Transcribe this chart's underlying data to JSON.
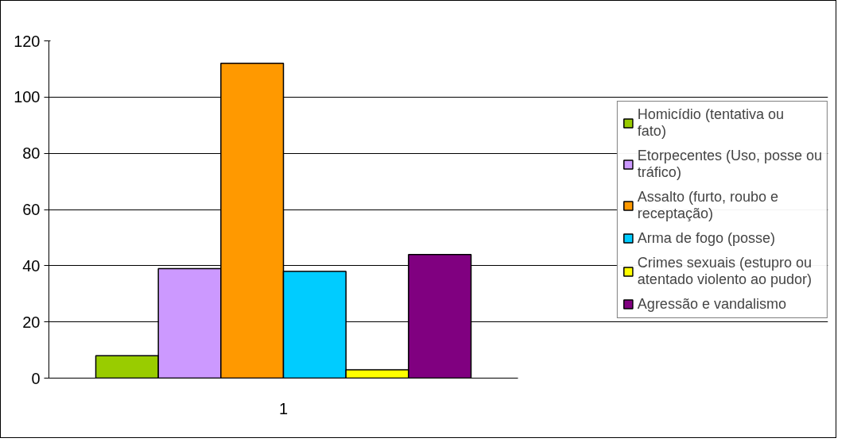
{
  "chart_data": {
    "type": "bar",
    "categories": [
      "1"
    ],
    "series": [
      {
        "name": "Homicídio (tentativa ou fato)",
        "color": "#99cc00",
        "values": [
          8
        ]
      },
      {
        "name": "Etorpecentes (Uso, posse ou tráfico)",
        "color": "#cc99ff",
        "values": [
          39
        ]
      },
      {
        "name": "Assalto (furto, roubo e receptação)",
        "color": "#ff9900",
        "values": [
          112
        ]
      },
      {
        "name": "Arma de fogo (posse)",
        "color": "#00ccff",
        "values": [
          38
        ]
      },
      {
        "name": "Crimes sexuais (estupro ou atentado violento ao pudor)",
        "color": "#ffff00",
        "values": [
          3
        ]
      },
      {
        "name": "Agressão e vandalismo",
        "color": "#800080",
        "values": [
          44
        ]
      }
    ],
    "ylim": [
      0,
      120
    ],
    "yticks": [
      0,
      20,
      40,
      60,
      80,
      100,
      120
    ],
    "grid": "y",
    "legend": "right"
  }
}
